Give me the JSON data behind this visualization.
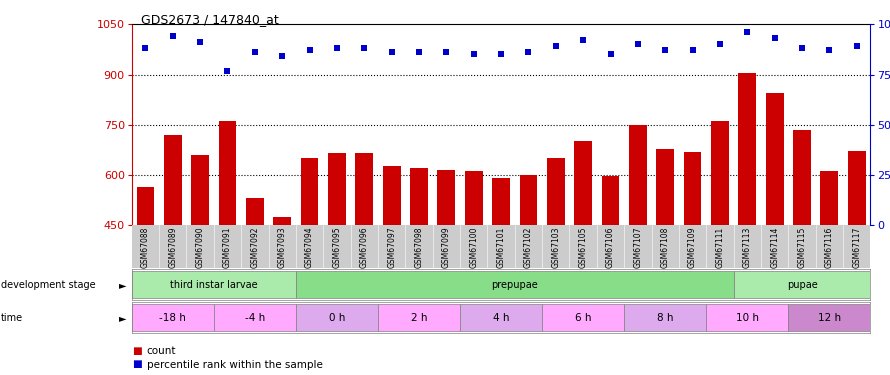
{
  "title": "GDS2673 / 147840_at",
  "samples": [
    "GSM67088",
    "GSM67089",
    "GSM67090",
    "GSM67091",
    "GSM67092",
    "GSM67093",
    "GSM67094",
    "GSM67095",
    "GSM67096",
    "GSM67097",
    "GSM67098",
    "GSM67099",
    "GSM67100",
    "GSM67101",
    "GSM67102",
    "GSM67103",
    "GSM67105",
    "GSM67106",
    "GSM67107",
    "GSM67108",
    "GSM67109",
    "GSM67111",
    "GSM67113",
    "GSM67114",
    "GSM67115",
    "GSM67116",
    "GSM67117"
  ],
  "counts": [
    565,
    720,
    660,
    760,
    530,
    475,
    650,
    665,
    665,
    625,
    620,
    615,
    610,
    592,
    600,
    650,
    700,
    597,
    750,
    678,
    668,
    762,
    905,
    845,
    735,
    612,
    670
  ],
  "percentiles": [
    88,
    94,
    91,
    77,
    86,
    84,
    87,
    88,
    88,
    86,
    86,
    86,
    85,
    85,
    86,
    89,
    92,
    85,
    90,
    87,
    87,
    90,
    96,
    93,
    88,
    87,
    89
  ],
  "bar_color": "#cc0000",
  "pct_color": "#0000cc",
  "ylim_left": [
    450,
    1050
  ],
  "ylim_right": [
    0,
    100
  ],
  "yticks_left": [
    450,
    600,
    750,
    900,
    1050
  ],
  "yticks_right": [
    0,
    25,
    50,
    75,
    100
  ],
  "ytick_right_labels": [
    "0",
    "25",
    "50",
    "75",
    "100%"
  ],
  "hlines": [
    600,
    750,
    900
  ],
  "dev_stages": [
    {
      "label": "third instar larvae",
      "start": 0,
      "end": 6,
      "color": "#aaeaaa"
    },
    {
      "label": "prepupae",
      "start": 6,
      "end": 22,
      "color": "#88dd88"
    },
    {
      "label": "pupae",
      "start": 22,
      "end": 27,
      "color": "#aaeaaa"
    }
  ],
  "time_groups": [
    {
      "label": "-18 h",
      "start": 0,
      "end": 3,
      "color": "#ffaaff"
    },
    {
      "label": "-4 h",
      "start": 3,
      "end": 6,
      "color": "#ffaaff"
    },
    {
      "label": "0 h",
      "start": 6,
      "end": 9,
      "color": "#ddaaee"
    },
    {
      "label": "2 h",
      "start": 9,
      "end": 12,
      "color": "#ffaaff"
    },
    {
      "label": "4 h",
      "start": 12,
      "end": 15,
      "color": "#ddaaee"
    },
    {
      "label": "6 h",
      "start": 15,
      "end": 18,
      "color": "#ffaaff"
    },
    {
      "label": "8 h",
      "start": 18,
      "end": 21,
      "color": "#ddaaee"
    },
    {
      "label": "10 h",
      "start": 21,
      "end": 24,
      "color": "#ffaaff"
    },
    {
      "label": "12 h",
      "start": 24,
      "end": 27,
      "color": "#cc88cc"
    }
  ]
}
